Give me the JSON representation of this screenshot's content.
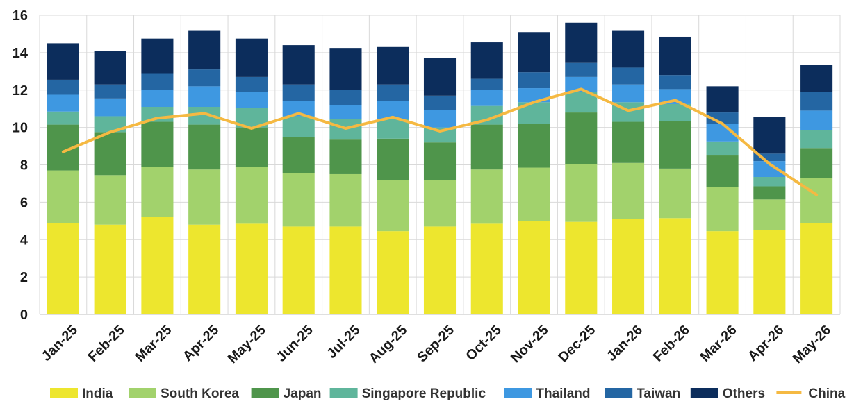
{
  "chart_data": {
    "type": "bar",
    "stacked": true,
    "categories": [
      "Jan-25",
      "Feb-25",
      "Mar-25",
      "Apr-25",
      "May-25",
      "Jun-25",
      "Jul-25",
      "Aug-25",
      "Sep-25",
      "Oct-25",
      "Nov-25",
      "Dec-25",
      "Jan-26",
      "Feb-26",
      "Mar-26",
      "Apr-26",
      "May-26"
    ],
    "ylim": [
      0,
      16
    ],
    "yticks": [
      0,
      2,
      4,
      6,
      8,
      10,
      12,
      14,
      16
    ],
    "grid": true,
    "legend_position": "bottom",
    "series": [
      {
        "name": "India",
        "color": "#EDE62E",
        "values": [
          4.9,
          4.8,
          5.2,
          4.8,
          4.85,
          4.7,
          4.7,
          4.45,
          4.7,
          4.85,
          5.0,
          4.95,
          5.1,
          5.15,
          4.45,
          4.5,
          4.9
        ]
      },
      {
        "name": "South Korea",
        "color": "#A2D26C",
        "values": [
          2.8,
          2.65,
          2.7,
          2.95,
          3.05,
          2.85,
          2.8,
          2.75,
          2.5,
          2.9,
          2.85,
          3.1,
          3.0,
          2.65,
          2.35,
          1.65,
          2.4
        ]
      },
      {
        "name": "Japan",
        "color": "#4F954B",
        "values": [
          2.45,
          2.3,
          2.4,
          2.4,
          2.1,
          1.95,
          1.85,
          2.2,
          2.0,
          2.4,
          2.35,
          2.75,
          2.2,
          2.55,
          1.7,
          0.7,
          1.6
        ]
      },
      {
        "name": "Singapore Republic",
        "color": "#5FB59B",
        "values": [
          0.7,
          0.85,
          0.8,
          0.95,
          1.05,
          1.1,
          1.1,
          1.05,
          0.8,
          1.0,
          1.15,
          1.1,
          1.05,
          0.9,
          0.75,
          0.5,
          0.95
        ]
      },
      {
        "name": "Thailand",
        "color": "#3E98E1",
        "values": [
          0.9,
          0.95,
          0.9,
          1.1,
          0.85,
          0.8,
          0.75,
          0.95,
          0.95,
          0.85,
          0.75,
          0.8,
          0.95,
          0.8,
          0.95,
          0.85,
          1.05
        ]
      },
      {
        "name": "Taiwan",
        "color": "#2466A3",
        "values": [
          0.8,
          0.75,
          0.9,
          0.9,
          0.8,
          0.9,
          0.8,
          0.9,
          0.75,
          0.6,
          0.85,
          0.75,
          0.9,
          0.75,
          0.6,
          0.4,
          1.0
        ]
      },
      {
        "name": "Others",
        "color": "#0C2D5C",
        "values": [
          1.95,
          1.8,
          1.85,
          2.1,
          2.05,
          2.1,
          2.25,
          2.0,
          2.0,
          1.95,
          2.15,
          2.15,
          2.0,
          2.05,
          1.4,
          1.95,
          1.45
        ]
      }
    ],
    "line_series": {
      "name": "China",
      "color": "#F5B942",
      "values": [
        8.7,
        9.75,
        10.5,
        10.75,
        9.95,
        10.75,
        9.95,
        10.55,
        9.8,
        10.4,
        11.35,
        12.05,
        10.9,
        11.45,
        10.2,
        8.05,
        6.4
      ]
    }
  }
}
